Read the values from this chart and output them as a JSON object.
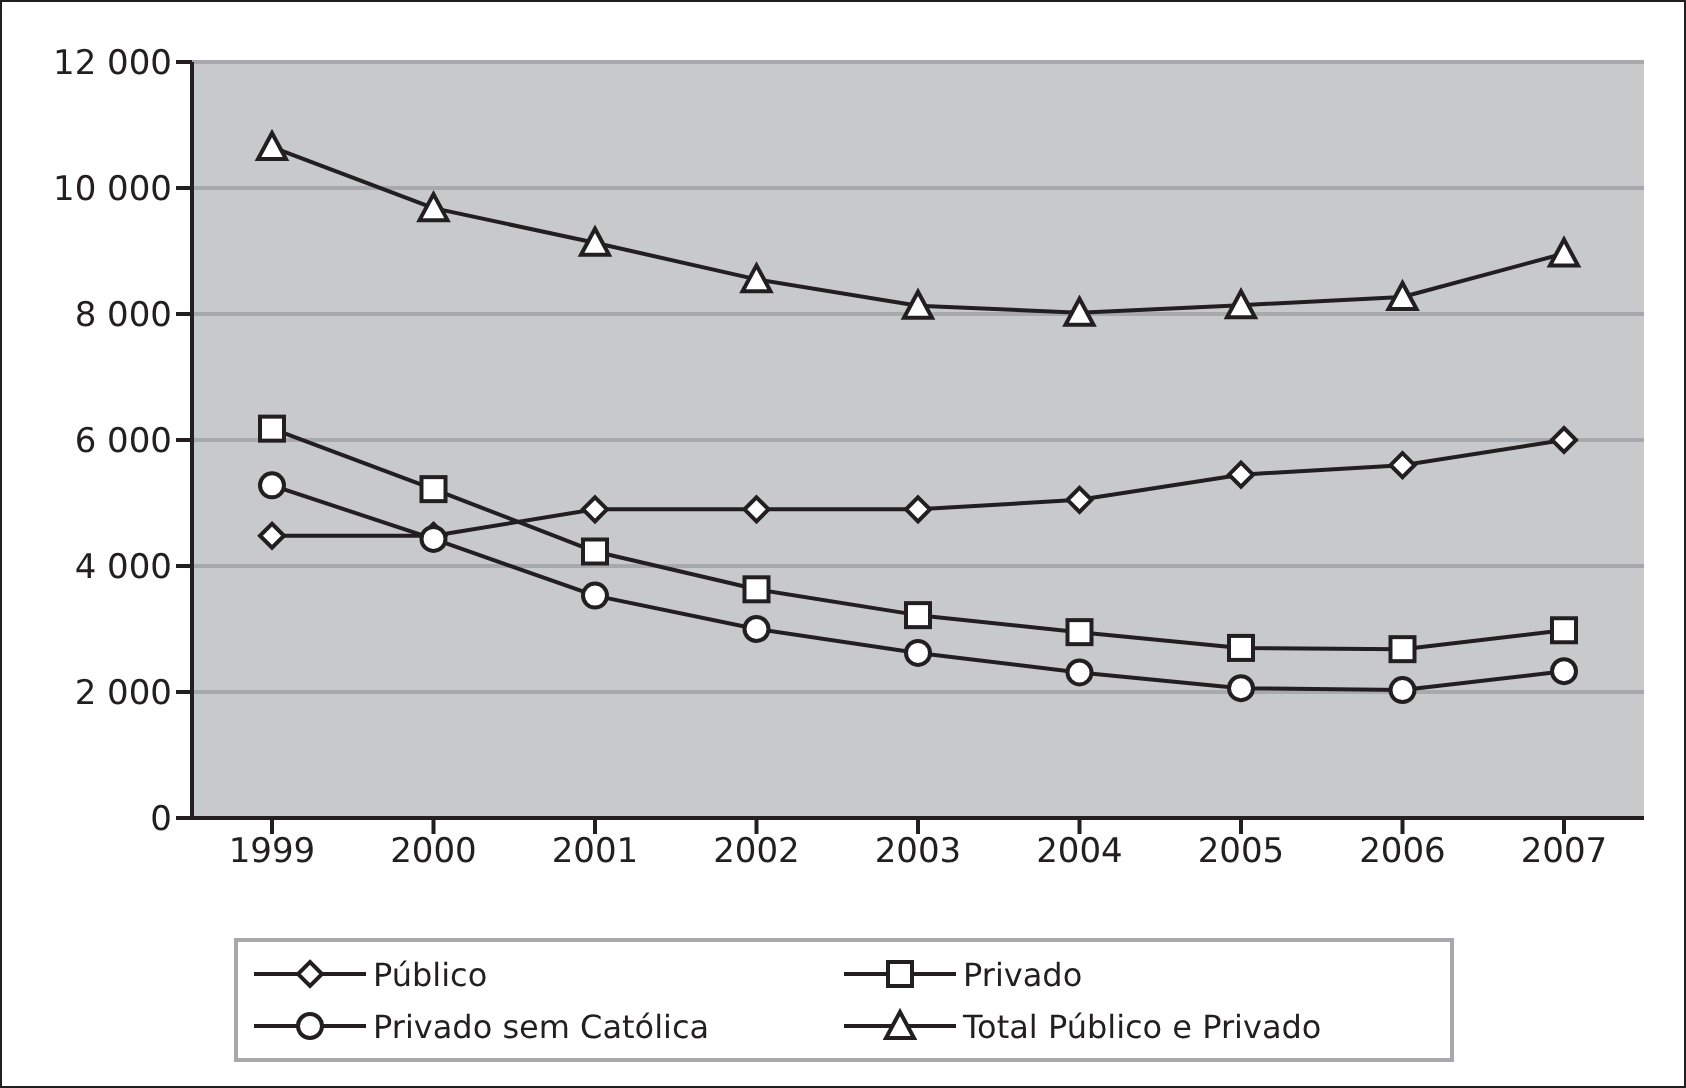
{
  "chart_data": {
    "type": "line",
    "categories": [
      "1999",
      "2000",
      "2001",
      "2002",
      "2003",
      "2004",
      "2005",
      "2006",
      "2007"
    ],
    "series": [
      {
        "name": "Público",
        "color": "#231f20",
        "marker": "diamond",
        "values": [
          4480,
          4480,
          4900,
          4900,
          4900,
          5050,
          5450,
          5600,
          6000
        ]
      },
      {
        "name": "Privado",
        "color": "#231f20",
        "marker": "square",
        "values": [
          6180,
          5220,
          4230,
          3630,
          3220,
          2950,
          2700,
          2680,
          2980
        ]
      },
      {
        "name": "Privado sem Católica",
        "color": "#231f20",
        "marker": "circle",
        "values": [
          5280,
          4430,
          3530,
          3000,
          2620,
          2310,
          2060,
          2030,
          2330
        ]
      },
      {
        "name": "Total Público e Privado",
        "color": "#231f20",
        "marker": "triangle",
        "values": [
          10650,
          9680,
          9130,
          8550,
          8130,
          8020,
          8140,
          8270,
          8960
        ]
      }
    ],
    "ylim": [
      0,
      12000
    ],
    "yticks": [
      0,
      {
        "value": 2000,
        "label": "2 000"
      },
      {
        "value": 4000,
        "label": "4 000"
      },
      {
        "value": 6000,
        "label": "6 000"
      },
      {
        "value": 8000,
        "label": "8 000"
      },
      {
        "value": 10000,
        "label": "10 000"
      },
      {
        "value": 12000,
        "label": "12 000"
      }
    ],
    "grid": "y",
    "legend": "bottom",
    "line_style": "solid"
  }
}
